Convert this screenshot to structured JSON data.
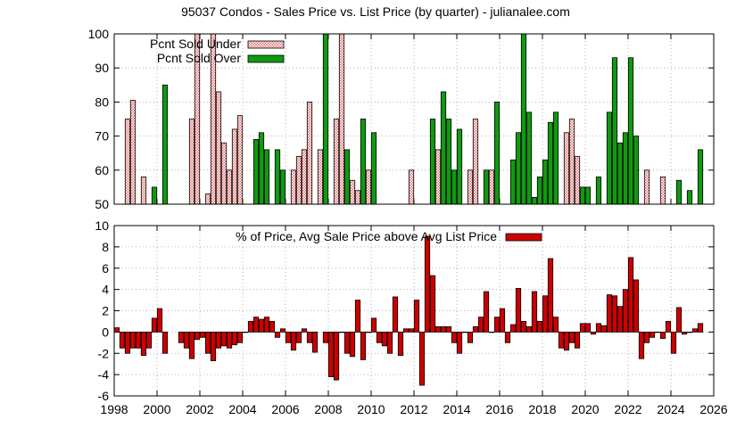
{
  "chart_data": [
    {
      "type": "bar",
      "title": "95037 Condos - Sales Price vs. List Price (by quarter) - julianalee.com",
      "ylim": [
        50,
        100
      ],
      "y_ticks": [
        50,
        60,
        70,
        80,
        90,
        100
      ],
      "x_range": [
        1998,
        2026
      ],
      "grid": "on",
      "legend_position": "top-left",
      "series": [
        {
          "name": "Pcnt Sold Under",
          "color": "#f7c6c6",
          "pattern": "hatched",
          "points": [
            [
              1998.5,
              75
            ],
            [
              1998.75,
              80.5
            ],
            [
              1999.25,
              58
            ],
            [
              2001.5,
              75
            ],
            [
              2001.75,
              100
            ],
            [
              2002.25,
              53
            ],
            [
              2002.5,
              100
            ],
            [
              2002.75,
              83
            ],
            [
              2003.0,
              68
            ],
            [
              2003.25,
              60
            ],
            [
              2003.5,
              72
            ],
            [
              2003.75,
              76
            ],
            [
              2006.25,
              60
            ],
            [
              2006.5,
              64
            ],
            [
              2006.75,
              66
            ],
            [
              2007.0,
              80
            ],
            [
              2007.5,
              66
            ],
            [
              2008.25,
              75
            ],
            [
              2008.5,
              100
            ],
            [
              2009.0,
              57
            ],
            [
              2009.25,
              54
            ],
            [
              2009.75,
              60
            ],
            [
              2011.75,
              60
            ],
            [
              2013.0,
              66
            ],
            [
              2014.5,
              60
            ],
            [
              2014.75,
              75
            ],
            [
              2015.5,
              60
            ],
            [
              2016.75,
              60
            ],
            [
              2019.0,
              71
            ],
            [
              2019.25,
              75
            ],
            [
              2019.5,
              64
            ],
            [
              2022.75,
              60
            ],
            [
              2023.5,
              58
            ]
          ]
        },
        {
          "name": "Pcnt Sold Over",
          "color": "#119911",
          "points": [
            [
              1999.75,
              55
            ],
            [
              2000.25,
              85
            ],
            [
              2004.5,
              69
            ],
            [
              2004.75,
              71
            ],
            [
              2005.0,
              66
            ],
            [
              2005.5,
              66
            ],
            [
              2005.75,
              60
            ],
            [
              2007.75,
              100
            ],
            [
              2008.75,
              66
            ],
            [
              2009.5,
              75
            ],
            [
              2010.0,
              71
            ],
            [
              2012.75,
              75
            ],
            [
              2013.25,
              83
            ],
            [
              2013.5,
              75
            ],
            [
              2013.75,
              60
            ],
            [
              2014.0,
              72
            ],
            [
              2015.25,
              60
            ],
            [
              2015.75,
              80
            ],
            [
              2016.5,
              63
            ],
            [
              2016.75,
              71
            ],
            [
              2017.0,
              100
            ],
            [
              2017.25,
              77
            ],
            [
              2017.5,
              52
            ],
            [
              2017.75,
              58
            ],
            [
              2018.0,
              63
            ],
            [
              2018.25,
              74
            ],
            [
              2018.5,
              77
            ],
            [
              2019.75,
              55
            ],
            [
              2020.0,
              55
            ],
            [
              2020.5,
              58
            ],
            [
              2021.0,
              77
            ],
            [
              2021.25,
              93
            ],
            [
              2021.5,
              68
            ],
            [
              2021.75,
              71
            ],
            [
              2022.0,
              93
            ],
            [
              2022.25,
              70
            ],
            [
              2024.25,
              57
            ],
            [
              2024.75,
              54
            ],
            [
              2025.25,
              66
            ]
          ]
        }
      ]
    },
    {
      "type": "bar",
      "title": "",
      "ylim": [
        -6,
        10
      ],
      "y_ticks": [
        -6,
        -4,
        -2,
        0,
        2,
        4,
        6,
        8,
        10
      ],
      "x_range": [
        1998,
        2026
      ],
      "x_ticks": [
        1998,
        2000,
        2002,
        2004,
        2006,
        2008,
        2010,
        2012,
        2014,
        2016,
        2018,
        2020,
        2022,
        2024,
        2026
      ],
      "grid": "on",
      "legend_position": "top-center",
      "series": [
        {
          "name": "% of Price, Avg Sale Price above Avg List Price",
          "color": "#cc0000",
          "points": [
            [
              1998.0,
              0.4
            ],
            [
              1998.25,
              -1.5
            ],
            [
              1998.5,
              -2.0
            ],
            [
              1998.75,
              -1.5
            ],
            [
              1999.0,
              -1.5
            ],
            [
              1999.25,
              -2.2
            ],
            [
              1999.5,
              -1.5
            ],
            [
              1999.75,
              1.3
            ],
            [
              2000.0,
              2.2
            ],
            [
              2000.25,
              -2.0
            ],
            [
              2001.0,
              -1.0
            ],
            [
              2001.25,
              -1.5
            ],
            [
              2001.5,
              -2.5
            ],
            [
              2001.75,
              -0.7
            ],
            [
              2002.0,
              -0.5
            ],
            [
              2002.25,
              -2.0
            ],
            [
              2002.5,
              -2.7
            ],
            [
              2002.75,
              -1.5
            ],
            [
              2003.0,
              -1.3
            ],
            [
              2003.25,
              -1.5
            ],
            [
              2003.5,
              -1.2
            ],
            [
              2003.75,
              -1.0
            ],
            [
              2004.0,
              0.0
            ],
            [
              2004.25,
              1.0
            ],
            [
              2004.5,
              1.4
            ],
            [
              2004.75,
              1.2
            ],
            [
              2005.0,
              1.4
            ],
            [
              2005.25,
              1.0
            ],
            [
              2005.5,
              -0.5
            ],
            [
              2005.75,
              0.3
            ],
            [
              2006.0,
              -1.0
            ],
            [
              2006.25,
              -1.7
            ],
            [
              2006.5,
              -1.0
            ],
            [
              2006.75,
              0.3
            ],
            [
              2007.0,
              -1.0
            ],
            [
              2007.25,
              -1.9
            ],
            [
              2007.75,
              -1.0
            ],
            [
              2008.0,
              -4.2
            ],
            [
              2008.25,
              -4.5
            ],
            [
              2008.5,
              0.0
            ],
            [
              2008.75,
              -2.0
            ],
            [
              2009.0,
              -2.3
            ],
            [
              2009.25,
              3.0
            ],
            [
              2009.5,
              -2.6
            ],
            [
              2009.75,
              0.0
            ],
            [
              2010.0,
              1.3
            ],
            [
              2010.25,
              -1.0
            ],
            [
              2010.5,
              -1.3
            ],
            [
              2010.75,
              -2.0
            ],
            [
              2011.0,
              3.3
            ],
            [
              2011.25,
              -2.2
            ],
            [
              2011.5,
              0.3
            ],
            [
              2011.75,
              0.3
            ],
            [
              2012.0,
              3.0
            ],
            [
              2012.25,
              -5.0
            ],
            [
              2012.5,
              9.0
            ],
            [
              2012.75,
              5.3
            ],
            [
              2013.0,
              0.5
            ],
            [
              2013.25,
              0.5
            ],
            [
              2013.5,
              0.5
            ],
            [
              2013.75,
              -1.0
            ],
            [
              2014.0,
              -2.0
            ],
            [
              2014.25,
              0.0
            ],
            [
              2014.5,
              -1.0
            ],
            [
              2014.75,
              0.5
            ],
            [
              2015.0,
              1.4
            ],
            [
              2015.25,
              3.8
            ],
            [
              2015.5,
              0.0
            ],
            [
              2015.75,
              1.4
            ],
            [
              2016.0,
              2.2
            ],
            [
              2016.25,
              -1.0
            ],
            [
              2016.5,
              0.7
            ],
            [
              2016.75,
              4.1
            ],
            [
              2017.0,
              1.0
            ],
            [
              2017.25,
              0.5
            ],
            [
              2017.5,
              3.8
            ],
            [
              2017.75,
              1.0
            ],
            [
              2018.0,
              3.4
            ],
            [
              2018.25,
              6.9
            ],
            [
              2018.5,
              1.4
            ],
            [
              2018.75,
              -1.5
            ],
            [
              2019.0,
              -1.7
            ],
            [
              2019.25,
              -1.0
            ],
            [
              2019.5,
              -1.5
            ],
            [
              2019.75,
              0.8
            ],
            [
              2020.0,
              0.8
            ],
            [
              2020.25,
              -0.2
            ],
            [
              2020.5,
              0.8
            ],
            [
              2020.75,
              0.6
            ],
            [
              2021.0,
              3.5
            ],
            [
              2021.25,
              3.4
            ],
            [
              2021.5,
              2.4
            ],
            [
              2021.75,
              4.0
            ],
            [
              2022.0,
              7.0
            ],
            [
              2022.25,
              4.9
            ],
            [
              2022.5,
              -2.5
            ],
            [
              2022.75,
              -1.0
            ],
            [
              2023.0,
              -0.5
            ],
            [
              2023.25,
              0.0
            ],
            [
              2023.5,
              -0.6
            ],
            [
              2023.75,
              1.0
            ],
            [
              2024.0,
              -2.0
            ],
            [
              2024.25,
              2.3
            ],
            [
              2024.5,
              -0.2
            ],
            [
              2024.75,
              0.0
            ],
            [
              2025.0,
              0.3
            ],
            [
              2025.25,
              0.8
            ]
          ]
        }
      ]
    }
  ]
}
